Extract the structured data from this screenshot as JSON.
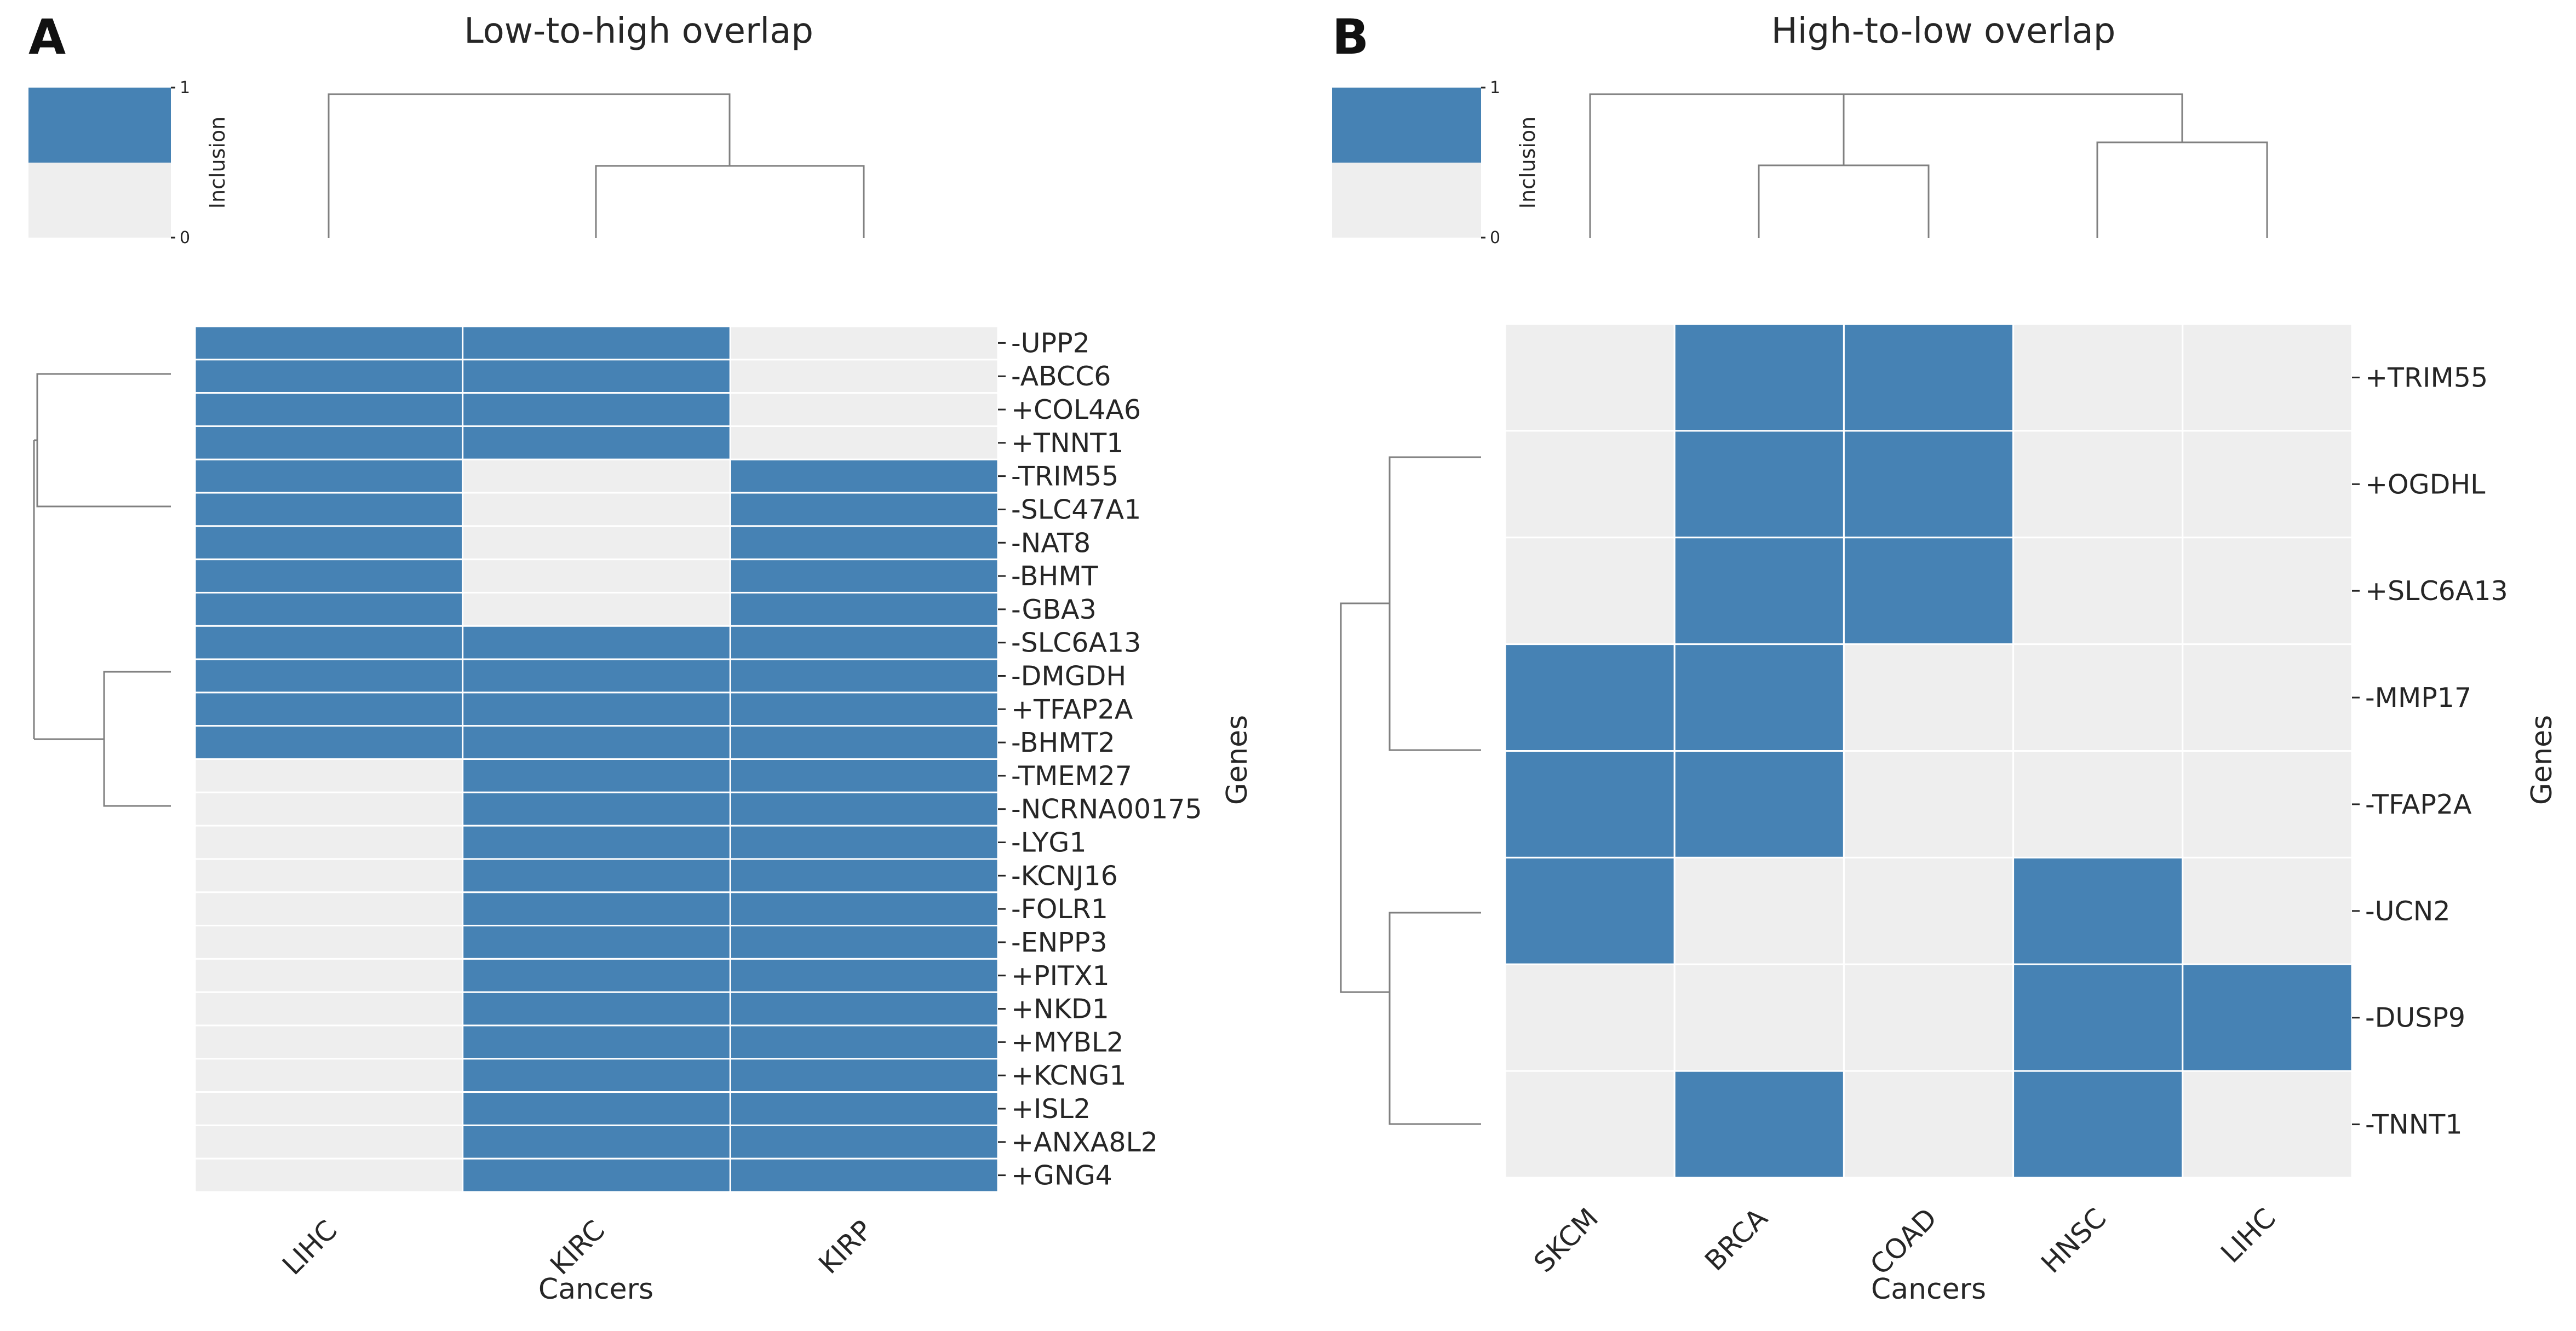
{
  "colors": {
    "included": "#4682b4",
    "excluded": "#eeeeee",
    "dendrogram": "#808080"
  },
  "chart_data": [
    {
      "type": "heatmap",
      "panel_label": "A",
      "title": "Low-to-high overlap",
      "xlabel": "Cancers",
      "ylabel": "Genes",
      "colorbar": {
        "label": "Inclusion",
        "ticks": [
          "0",
          "1"
        ],
        "range": [
          0,
          1
        ]
      },
      "columns": [
        "LIHC",
        "KIRC",
        "KIRP"
      ],
      "rows": [
        "-UPP2",
        "-ABCC6",
        "+COL4A6",
        "+TNNT1",
        "-TRIM55",
        "-SLC47A1",
        "-NAT8",
        "-BHMT",
        "-GBA3",
        "-SLC6A13",
        "-DMGDH",
        "+TFAP2A",
        "-BHMT2",
        "-TMEM27",
        "-NCRNA00175",
        "-LYG1",
        "-KCNJ16",
        "-FOLR1",
        "-ENPP3",
        "+PITX1",
        "+NKD1",
        "+MYBL2",
        "+KCNG1",
        "+ISL2",
        "+ANXA8L2",
        "+GNG4"
      ],
      "values": [
        [
          1,
          1,
          0
        ],
        [
          1,
          1,
          0
        ],
        [
          1,
          1,
          0
        ],
        [
          1,
          1,
          0
        ],
        [
          1,
          0,
          1
        ],
        [
          1,
          0,
          1
        ],
        [
          1,
          0,
          1
        ],
        [
          1,
          0,
          1
        ],
        [
          1,
          0,
          1
        ],
        [
          1,
          1,
          1
        ],
        [
          1,
          1,
          1
        ],
        [
          1,
          1,
          1
        ],
        [
          1,
          1,
          1
        ],
        [
          0,
          1,
          1
        ],
        [
          0,
          1,
          1
        ],
        [
          0,
          1,
          1
        ],
        [
          0,
          1,
          1
        ],
        [
          0,
          1,
          1
        ],
        [
          0,
          1,
          1
        ],
        [
          0,
          1,
          1
        ],
        [
          0,
          1,
          1
        ],
        [
          0,
          1,
          1
        ],
        [
          0,
          1,
          1
        ],
        [
          0,
          1,
          1
        ],
        [
          0,
          1,
          1
        ],
        [
          0,
          1,
          1
        ]
      ]
    },
    {
      "type": "heatmap",
      "panel_label": "B",
      "title": "High-to-low overlap",
      "xlabel": "Cancers",
      "ylabel": "Genes",
      "colorbar": {
        "label": "Inclusion",
        "ticks": [
          "0",
          "1"
        ],
        "range": [
          0,
          1
        ]
      },
      "columns": [
        "SKCM",
        "BRCA",
        "COAD",
        "HNSC",
        "LIHC"
      ],
      "rows": [
        "+TRIM55",
        "+OGDHL",
        "+SLC6A13",
        "-MMP17",
        "-TFAP2A",
        "-UCN2",
        "-DUSP9",
        "-TNNT1"
      ],
      "values": [
        [
          0,
          1,
          1,
          0,
          0
        ],
        [
          0,
          1,
          1,
          0,
          0
        ],
        [
          0,
          1,
          1,
          0,
          0
        ],
        [
          1,
          1,
          0,
          0,
          0
        ],
        [
          1,
          1,
          0,
          0,
          0
        ],
        [
          1,
          0,
          0,
          1,
          0
        ],
        [
          0,
          0,
          0,
          1,
          1
        ],
        [
          0,
          1,
          0,
          1,
          0
        ]
      ]
    }
  ]
}
